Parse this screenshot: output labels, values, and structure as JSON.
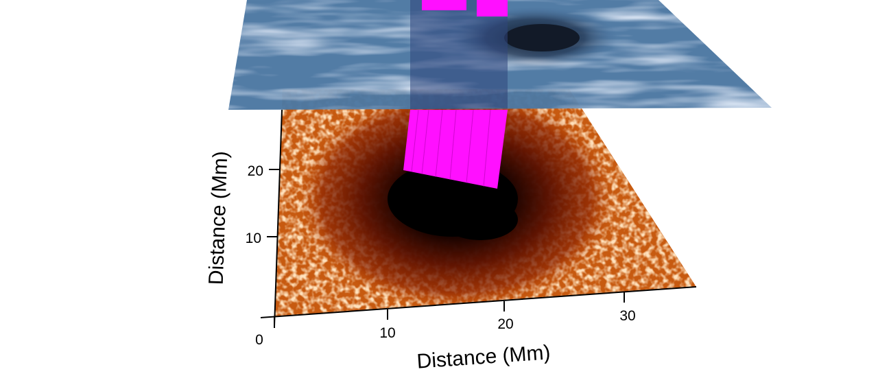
{
  "x_axis": {
    "label": "Distance (Mm)",
    "ticks": [
      0,
      10,
      20,
      30
    ]
  },
  "y_axis": {
    "label": "Distance (Mm)",
    "ticks": [
      10,
      20
    ]
  }
}
